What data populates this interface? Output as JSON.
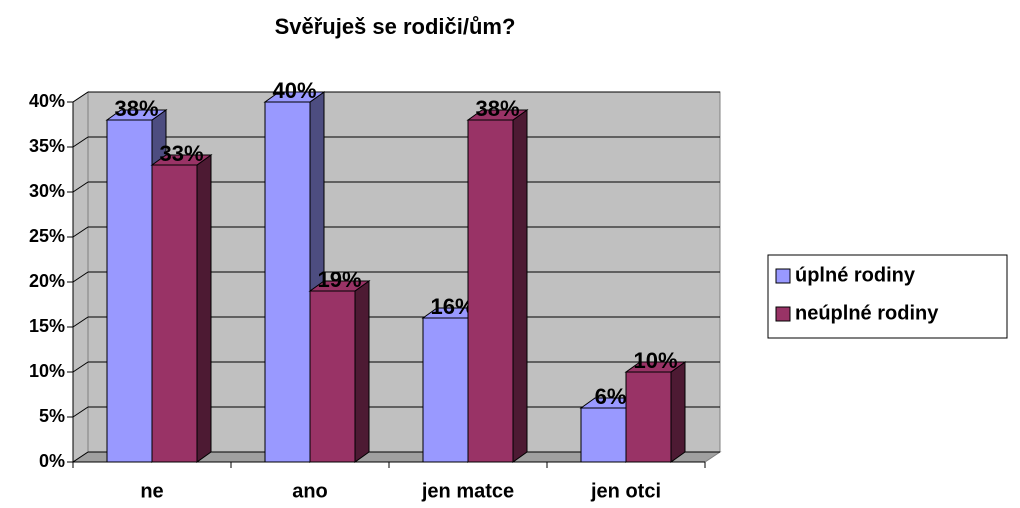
{
  "chart_data": {
    "type": "bar3d",
    "title": "Svěřuješ se rodiči/ům?",
    "categories": [
      "ne",
      "ano",
      "jen matce",
      "jen otci"
    ],
    "series": [
      {
        "name": "úplné rodiny",
        "color": "#9999ff",
        "values": [
          38,
          40,
          16,
          6
        ],
        "value_labels": [
          "38%",
          "40%",
          "16%",
          "6%"
        ]
      },
      {
        "name": "neúplné rodiny",
        "color": "#993366",
        "values": [
          33,
          19,
          38,
          10
        ],
        "value_labels": [
          "33%",
          "19%",
          "38%",
          "10%"
        ]
      }
    ],
    "ylim": [
      0,
      40
    ],
    "yticks": [
      {
        "value": 0,
        "label": "0%"
      },
      {
        "value": 5,
        "label": "5%"
      },
      {
        "value": 10,
        "label": "10%"
      },
      {
        "value": 15,
        "label": "15%"
      },
      {
        "value": 20,
        "label": "20%"
      },
      {
        "value": 25,
        "label": "25%"
      },
      {
        "value": 30,
        "label": "30%"
      },
      {
        "value": 35,
        "label": "35%"
      },
      {
        "value": 40,
        "label": "40%"
      }
    ],
    "grid": true,
    "legend": "right"
  }
}
